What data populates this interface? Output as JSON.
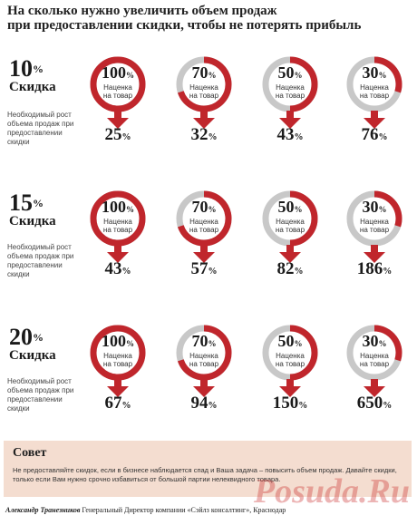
{
  "title_line1": "На сколько нужно увеличить объем продаж",
  "title_line2": "при предоставлении скидки, чтобы не потерять прибыль",
  "ring_sub_line1": "Наценка",
  "ring_sub_line2": "на товар",
  "pct_symbol": "%",
  "note_text": "Необходимый рост объема продаж при предоставлении скидки",
  "discount_label": "Скидка",
  "sections": [
    {
      "discount": "10",
      "markups": [
        "100",
        "70",
        "50",
        "30"
      ],
      "results": [
        "25",
        "32",
        "43",
        "76"
      ]
    },
    {
      "discount": "15",
      "markups": [
        "100",
        "70",
        "50",
        "30"
      ],
      "results": [
        "43",
        "57",
        "82",
        "186"
      ]
    },
    {
      "discount": "20",
      "markups": [
        "100",
        "70",
        "50",
        "30"
      ],
      "results": [
        "67",
        "94",
        "150",
        "650"
      ]
    }
  ],
  "advice": {
    "title": "Совет",
    "text": "Не предоставляйте скидок, если в бизнесе наблюдается спад и Ваша задача – повысить объем продаж. Давайте скидки, только если Вам нужно срочно избавиться от большой партии нелеквидного товара."
  },
  "footer": {
    "name": "Александр Транезников",
    "role": "Генеральный Директор компании «Сэйлз консалтинг», Краснодар"
  },
  "watermark": "Posuda.Ru",
  "colors": {
    "accent": "#c0262c",
    "ring_gray": "#c8c8c8",
    "advice_bg": "#f4ddd0"
  }
}
